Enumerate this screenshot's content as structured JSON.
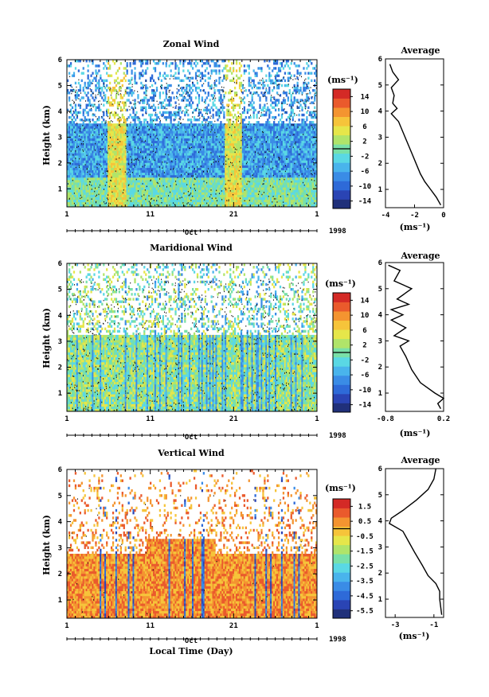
{
  "x_axis": {
    "ticks": [
      "1",
      "11",
      "21",
      "1"
    ],
    "month": "Oct",
    "year": "1998",
    "label": "Local Time (Day)"
  },
  "y_axis_label": "Height (km)",
  "height_ticks": [
    "1",
    "2",
    "3",
    "4",
    "5",
    "6"
  ],
  "colorbar_unit": "(ms⁻¹)",
  "average": {
    "title": "Average",
    "unit": "(ms⁻¹)"
  },
  "colors": {
    "jet": [
      "#20307a",
      "#2a44b4",
      "#2e6ad8",
      "#3a8ce6",
      "#49b4ec",
      "#5ad8e4",
      "#79e0a8",
      "#b0e46a",
      "#e6e64a",
      "#f6c43a",
      "#f49430",
      "#ea5a2c",
      "#d42a26"
    ]
  },
  "chart_data": [
    {
      "type": "heatmap",
      "title": "Zonal Wind",
      "ylabel": "Height (km)",
      "xlabel": "",
      "ylim": [
        0.3,
        6
      ],
      "x_ticks": [
        "1",
        "11",
        "21",
        "1"
      ],
      "colorbar": {
        "labels": [
          "14",
          "10",
          "6",
          "2",
          "-2",
          "-6",
          "-10",
          "-14"
        ],
        "range": [
          -16,
          16
        ]
      },
      "average_profile": {
        "title": "Average",
        "xlim": [
          -4,
          0
        ],
        "x_ticks": [
          "-4",
          "-2",
          "0"
        ],
        "y_ticks": [
          "1",
          "2",
          "3",
          "4",
          "5",
          "6"
        ],
        "ylim": [
          0.3,
          6
        ],
        "points": [
          [
            -0.2,
            0.4
          ],
          [
            -0.5,
            0.7
          ],
          [
            -0.9,
            1.0
          ],
          [
            -1.3,
            1.3
          ],
          [
            -1.6,
            1.6
          ],
          [
            -1.9,
            2.0
          ],
          [
            -2.2,
            2.4
          ],
          [
            -2.5,
            2.8
          ],
          [
            -2.8,
            3.2
          ],
          [
            -3.1,
            3.6
          ],
          [
            -3.6,
            3.9
          ],
          [
            -3.2,
            4.1
          ],
          [
            -3.5,
            4.3
          ],
          [
            -3.4,
            4.6
          ],
          [
            -3.6,
            4.9
          ],
          [
            -3.1,
            5.2
          ],
          [
            -3.5,
            5.5
          ],
          [
            -3.7,
            5.8
          ]
        ]
      }
    },
    {
      "type": "heatmap",
      "title": "Maridional Wind",
      "ylabel": "Height (km)",
      "xlabel": "",
      "ylim": [
        0.3,
        6
      ],
      "x_ticks": [
        "1",
        "11",
        "21",
        "1"
      ],
      "colorbar": {
        "labels": [
          "14",
          "10",
          "6",
          "2",
          "-2",
          "-6",
          "-10",
          "-14"
        ],
        "range": [
          -16,
          16
        ]
      },
      "average_profile": {
        "title": "Average",
        "xlim": [
          -0.8,
          0.2
        ],
        "x_ticks": [
          "-0.8",
          "0.2"
        ],
        "y_ticks": [
          "1",
          "2",
          "3",
          "4",
          "5",
          "6"
        ],
        "ylim": [
          0.3,
          6
        ],
        "points": [
          [
            0.15,
            0.4
          ],
          [
            0.1,
            0.6
          ],
          [
            0.2,
            0.8
          ],
          [
            0.05,
            1.0
          ],
          [
            -0.2,
            1.4
          ],
          [
            -0.35,
            1.9
          ],
          [
            -0.45,
            2.4
          ],
          [
            -0.55,
            2.8
          ],
          [
            -0.4,
            3.0
          ],
          [
            -0.65,
            3.2
          ],
          [
            -0.45,
            3.5
          ],
          [
            -0.7,
            3.8
          ],
          [
            -0.5,
            4.0
          ],
          [
            -0.7,
            4.2
          ],
          [
            -0.4,
            4.4
          ],
          [
            -0.6,
            4.6
          ],
          [
            -0.35,
            5.0
          ],
          [
            -0.65,
            5.3
          ],
          [
            -0.55,
            5.7
          ],
          [
            -0.75,
            5.9
          ]
        ]
      }
    },
    {
      "type": "heatmap",
      "title": "Vertical Wind",
      "ylabel": "Height (km)",
      "xlabel": "Local Time (Day)",
      "ylim": [
        0.3,
        6
      ],
      "x_ticks": [
        "1",
        "11",
        "21",
        "1"
      ],
      "colorbar": {
        "labels": [
          "1.5",
          "0.5",
          "-0.5",
          "-1.5",
          "-2.5",
          "-3.5",
          "-4.5",
          "-5.5"
        ],
        "range": [
          -6,
          2
        ]
      },
      "average_profile": {
        "title": "Average",
        "xlim": [
          -3.5,
          -0.5
        ],
        "x_ticks": [
          "-3",
          "-1"
        ],
        "y_ticks": [
          "1",
          "2",
          "3",
          "4",
          "5",
          "6"
        ],
        "ylim": [
          0.3,
          6
        ],
        "points": [
          [
            -0.6,
            0.4
          ],
          [
            -0.7,
            1.0
          ],
          [
            -0.7,
            1.3
          ],
          [
            -0.9,
            1.6
          ],
          [
            -1.3,
            1.9
          ],
          [
            -1.6,
            2.3
          ],
          [
            -2.0,
            2.8
          ],
          [
            -2.3,
            3.2
          ],
          [
            -2.6,
            3.6
          ],
          [
            -3.3,
            3.9
          ],
          [
            -3.2,
            4.1
          ],
          [
            -2.6,
            4.4
          ],
          [
            -1.9,
            4.8
          ],
          [
            -1.3,
            5.2
          ],
          [
            -1.0,
            5.6
          ],
          [
            -0.9,
            6.0
          ]
        ]
      }
    }
  ]
}
